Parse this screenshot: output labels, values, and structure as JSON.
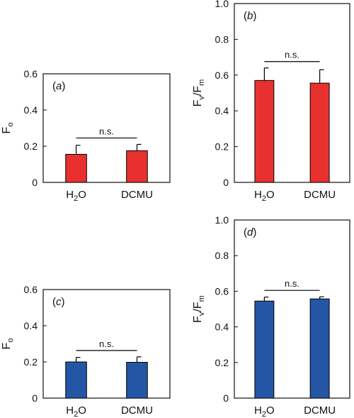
{
  "colors": {
    "red": "#e8312f",
    "blue": "#2456a6",
    "axis": "#111111"
  },
  "chart_data": [
    {
      "panel_label": "a",
      "type": "bar",
      "ylabel": "F",
      "ylabel_sub": "o",
      "categories": [
        "H",
        "DCMU"
      ],
      "values": [
        0.155,
        0.175
      ],
      "errors": [
        0.05,
        0.035
      ],
      "ylim": [
        0,
        0.6
      ],
      "yticks": [
        "0",
        "0.2",
        "0.4",
        "0.6"
      ],
      "annotation": "n.s.",
      "color": "red"
    },
    {
      "panel_label": "b",
      "type": "bar",
      "ylabel": "F",
      "ylabel_sub": "v",
      "ylabel_mid": "/F",
      "ylabel_sub2": "m",
      "categories": [
        "H",
        "DCMU"
      ],
      "values": [
        0.57,
        0.555
      ],
      "errors": [
        0.07,
        0.075
      ],
      "ylim": [
        0,
        1.0
      ],
      "yticks": [
        "0",
        "0.2",
        "0.4",
        "0.6",
        "0.8",
        "1.0"
      ],
      "annotation": "n.s.",
      "color": "red"
    },
    {
      "panel_label": "c",
      "type": "bar",
      "ylabel": "F",
      "ylabel_sub": "o",
      "categories": [
        "H",
        "DCMU"
      ],
      "values": [
        0.2,
        0.198
      ],
      "errors": [
        0.025,
        0.03
      ],
      "ylim": [
        0,
        0.6
      ],
      "yticks": [
        "0",
        "0.2",
        "0.4",
        "0.6"
      ],
      "annotation": "n.s.",
      "color": "blue"
    },
    {
      "panel_label": "d",
      "type": "bar",
      "ylabel": "F",
      "ylabel_sub": "v",
      "ylabel_mid": "/F",
      "ylabel_sub2": "m",
      "categories": [
        "H",
        "DCMU"
      ],
      "values": [
        0.545,
        0.557
      ],
      "errors": [
        0.022,
        0.012
      ],
      "ylim": [
        0,
        1.0
      ],
      "yticks": [
        "0",
        "0.2",
        "0.4",
        "0.6",
        "0.8",
        "1.0"
      ],
      "annotation": "n.s.",
      "color": "blue"
    }
  ],
  "water_sub": "2",
  "water_tail": "O"
}
